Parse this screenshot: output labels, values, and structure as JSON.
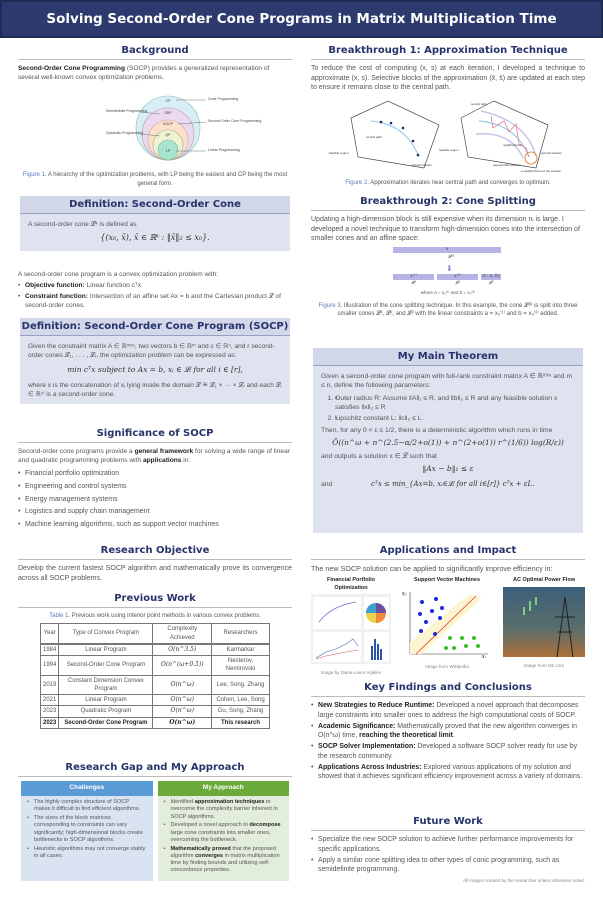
{
  "title": "Solving Second-Order Cone Programs in Matrix Multiplication Time",
  "background": {
    "heading": "Background",
    "lead": "Second-Order Cone Programming",
    "text": " (SOCP) provides a generalized representation of several well-known convex optimization problems.",
    "fig_labels": {
      "cp": "CP",
      "sdp": "SDP",
      "socp": "SOCP",
      "qp": "QP",
      "lp": "LP",
      "cone": "Cone Programming",
      "semidef": "Semidefinite Programming",
      "soc": "Second-Order Cone Programming",
      "quad": "Quadratic Programming",
      "lin": "Linear Programming"
    },
    "fig_num": "Figure 1.",
    "caption": " A hierarchy of the optimization problems, with LP being the easiest and CP being the most general form."
  },
  "def_cone": {
    "heading": "Definition: Second-Order Cone",
    "text": "A second-order cone 𝓛ᵏ is defined as",
    "formula": "{(x₀, x̄), x̄ ∈ ℝᵏ : ‖x̄‖₂ ≤ x₀}."
  },
  "socp_intro": {
    "text": "A second-order cone program is a convex optimization problem with:",
    "items": [
      {
        "lead": "Objective function:",
        "text": " Linear function cᵀx"
      },
      {
        "lead": "Constraint function:",
        "text": " Intersection of an affine set Ax = b and the Cartesian product 𝓛 of second-order cones."
      }
    ]
  },
  "def_socp": {
    "heading": "Definition: Second-Order Cone Program (SOCP)",
    "text": "Given the constraint matrix A ∈ ℝᵐˣⁿ, two vectors b ∈ ℝᵐ and c ∈ ℝⁿ, and r second-order cones 𝓛₁, . . . , 𝓛ᵣ, the optimization problem can be expressed as:",
    "formula": "min cᵀx subject to Ax = b, xᵢ ∈ 𝓛ᵢ for all i ∈ [r],",
    "text2": "where x is the concatenation of xᵢ lying inside the domain 𝓛 ≝ 𝓛₁ × ··· × 𝓛ᵣ and each 𝓛ᵢ ∈ ℝⁿⁱ is a second-order cone."
  },
  "significance": {
    "heading": "Significance of SOCP",
    "t1": "Second-order cone programs provide a ",
    "b1": "general framework",
    "t2": " for solving a wide range of linear and quadratic programming problems with ",
    "b2": "applications",
    "t3": " in:",
    "items": [
      "Financial portfolio optimization",
      "Engineering and control systems",
      "Energy management systems",
      "Logistics and supply chain management",
      "Machine learning algorithms, such as support vector machines"
    ]
  },
  "objective": {
    "heading": "Research Objective",
    "text": "Develop the current fastest SOCP algorithm and mathematically prove its convergence across all SOCP problems."
  },
  "previous": {
    "heading": "Previous Work",
    "tab_num": "Table 1.",
    "caption": " Previous work using interior point methods in various convex problems.",
    "headers": [
      "Year",
      "Type of Convex Program",
      "Complexity Achieved",
      "Researchers"
    ],
    "rows": [
      [
        "1984",
        "Linear Program",
        "O(n^3.5)",
        "Karmarkar"
      ],
      [
        "1994",
        "Second-Order Cone Program",
        "O(n^(ω+0.5))",
        "Nesterov, Nemirovski"
      ],
      [
        "2019",
        "Constant Dimension Convex Program",
        "O(n^ω)",
        "Lee, Song, Zhang"
      ],
      [
        "2021",
        "Linear Program",
        "O(n^ω)",
        "Cohen, Lee, Song"
      ],
      [
        "2023",
        "Quadratic Program",
        "O(n^ω)",
        "Gu, Song, Zhang"
      ],
      [
        "2023",
        "Second-Order Cone Program",
        "O(n^ω)",
        "This research"
      ]
    ]
  },
  "gap": {
    "heading": "Research Gap and My Approach",
    "challenges": {
      "title": "Challenges",
      "color": "#5b9bd5",
      "items": [
        "The highly complex structure of SOCP makes it difficult to find efficient algorithms.",
        "The sizes of the block matrices corresponding to constraints can vary significantly; high-dimensional blocks create bottlenecks in SOCP algorithms.",
        "Heuristic algorithms may not converge stably in all cases."
      ]
    },
    "approach": {
      "title": "My Approach",
      "color": "#6aaa3a",
      "items": [
        {
          "a": "Identified ",
          "b": "approximation techniques",
          "c": " to overcome the complexity barrier inherent in SOCP algorithms."
        },
        {
          "a": "Developed a novel approach to ",
          "b": "decompose",
          "c": " large cone constraints into smaller ones, overcoming the bottleneck."
        },
        {
          "a": "",
          "b": "Mathematically proved",
          "c": " that the proposed algorithm ",
          "d": "converges",
          "e": " in matrix multiplication time by finding bounds and utilizing self-concordance properties."
        }
      ]
    }
  },
  "b1": {
    "heading": "Breakthrough 1: Approximation Technique",
    "text": "To reduce the cost of computing (x, s) at each iteration, I developed a technique to approximate (x, s). Selective blocks of the approximation (x̄, s̄) are updated at each step to ensure it remains close to the central path.",
    "labels": {
      "central": "central path",
      "feasible": "feasible region",
      "optimal": "optimal solution",
      "neighborhood": "neighborhood",
      "approx": "approximate solution",
      "eps": "ε-neighborhood of the solution"
    },
    "fig_num": "Figure 2.",
    "caption": " Approximation iterates near central path and converges to optimum."
  },
  "b2": {
    "heading": "Breakthrough 2: Cone Splitting",
    "text": "Updating a high-dimension block is still expensive when its dimension nᵢ is large. I developed a novel technique to transform high-dimension cones into the intersection of smaller cones and an affine space:",
    "fig": {
      "top": "x",
      "top_cone": "𝓛²ᵏ",
      "b1": "x⁽¹⁾",
      "b2": "x⁽²⁾",
      "b3": "(c, a, b)",
      "c1": "𝓛ᵏ",
      "c2": "𝓛ᵏ",
      "c3": "𝓛²",
      "where": "where a = x₀⁽¹⁾ and b = x₀⁽²⁾"
    },
    "fig_num": "Figure 3.",
    "caption": " Illustration of the cone splitting technique. In this example, the cone 𝓛²ᵏ is split into three smaller cones 𝓛ᵏ, 𝓛ᵏ, and 𝓛² with the linear constraints a = x₀⁽¹⁾ and b = x₀⁽²⁾ added."
  },
  "theorem": {
    "heading": "My Main Theorem",
    "text": "Given a second-order cone program with full-rank constraint matrix A ∈ ℝᵐˣⁿ and m ≤ n, define the following parameters:",
    "items": [
      "Outer radius R: Assume ‖A‖₁ ≤ R, and ‖b‖₂ ≤ R and any feasible solution x satisfies ‖x‖₂ ≤ R",
      "Lipschitz constant L: ‖c‖₂ ≤ L."
    ],
    "then": "Then, for any 0 < ε ≤ 1/2, there is a deterministic algorithm which runs in time",
    "runtime": "Õ((n^ω + n^(2.5−α/2+o(1)) + n^(2+o(1)) r^(1/6)) log(R/ε))",
    "outputs": "and outputs a solution x ∈ 𝓛 such that",
    "f1": "‖Ax − b‖₁ ≤ ε",
    "and": "and",
    "f2": "cᵀx ≤ min_{Ax=b, xᵢ∈𝓛ᵢ for all i∈[r]} cᵀx + εL."
  },
  "applications": {
    "heading": "Applications and Impact",
    "text": "The new SOCP solution can be applied to significantly improve efficiency in:",
    "items": [
      {
        "title": "Financial Portfolio Optimization",
        "credit": "Image by Diane-Laure Arjaliès"
      },
      {
        "title": "Support Vector Machines",
        "credit": "Image from Wikipedia",
        "x1": "x₁",
        "x2": "x₂"
      },
      {
        "title": "AC Optimal Power Flow",
        "credit": "Image from GE.com"
      }
    ]
  },
  "findings": {
    "heading": "Key Findings and Conclusions",
    "items": [
      {
        "lead": "New Strategies to Reduce Runtime:",
        "text": " Developed a novel approach that decomposes large constraints into smaller ones to address the high computational costs of SOCP."
      },
      {
        "lead": "Academic Significance:",
        "text": " Mathematically proved that the new algorithm converges in O(n^ω) time, ",
        "bold2": "reaching the theoretical limit",
        "end": "."
      },
      {
        "lead": "SOCP Solver Implementation:",
        "text": " Developed a software SOCP solver ready for use by the research community."
      },
      {
        "lead": "Applications Across Industries:",
        "text": " Explored various applications of my solution and showed that it achieves significant efficiency improvement across a variety of domains."
      }
    ]
  },
  "future": {
    "heading": "Future Work",
    "items": [
      "Specialize the new SOCP solution to achieve further performance improvements for specific applications.",
      "Apply a similar cone splitting idea to other types of conic programming, such as semidefinite programming."
    ],
    "footnote": "All images created by the researcher unless otherwise noted."
  }
}
